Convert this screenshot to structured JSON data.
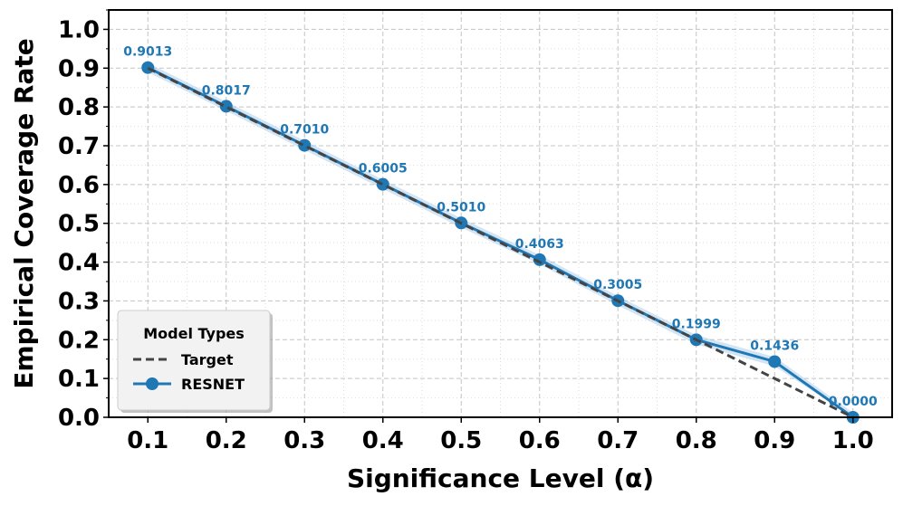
{
  "chart_data": {
    "type": "line",
    "title": "",
    "xlabel": "Significance Level (α)",
    "ylabel": "Empirical Coverage Rate",
    "xlim": [
      0.05,
      1.05
    ],
    "ylim": [
      0.0,
      1.05
    ],
    "x": [
      0.1,
      0.2,
      0.3,
      0.4,
      0.5,
      0.6,
      0.7,
      0.8,
      0.9,
      1.0
    ],
    "x_tick_labels": [
      "0.1",
      "0.2",
      "0.3",
      "0.4",
      "0.5",
      "0.6",
      "0.7",
      "0.8",
      "0.9",
      "1.0"
    ],
    "y_tick_labels": [
      "0.0",
      "0.1",
      "0.2",
      "0.3",
      "0.4",
      "0.5",
      "0.6",
      "0.7",
      "0.8",
      "0.9",
      "1.0"
    ],
    "y_ticks": [
      0.0,
      0.1,
      0.2,
      0.3,
      0.4,
      0.5,
      0.6,
      0.7,
      0.8,
      0.9,
      1.0
    ],
    "grid": true,
    "legend_title": "Model Types",
    "legend_position": "lower-left",
    "series": [
      {
        "name": "Target",
        "style": "dashed",
        "color": "#444444",
        "values": [
          0.9,
          0.8,
          0.7,
          0.6,
          0.5,
          0.4,
          0.3,
          0.2,
          0.1,
          0.0
        ]
      },
      {
        "name": "RESNET",
        "style": "solid-marker",
        "color": "#1f77b4",
        "values": [
          0.9013,
          0.8017,
          0.701,
          0.6005,
          0.501,
          0.4063,
          0.3005,
          0.1999,
          0.1436,
          0.0
        ],
        "labels": [
          "0.9013",
          "0.8017",
          "0.7010",
          "0.6005",
          "0.5010",
          "0.4063",
          "0.3005",
          "0.1999",
          "0.1436",
          "0.0000"
        ]
      }
    ],
    "band_color": "#9ec5e8"
  }
}
